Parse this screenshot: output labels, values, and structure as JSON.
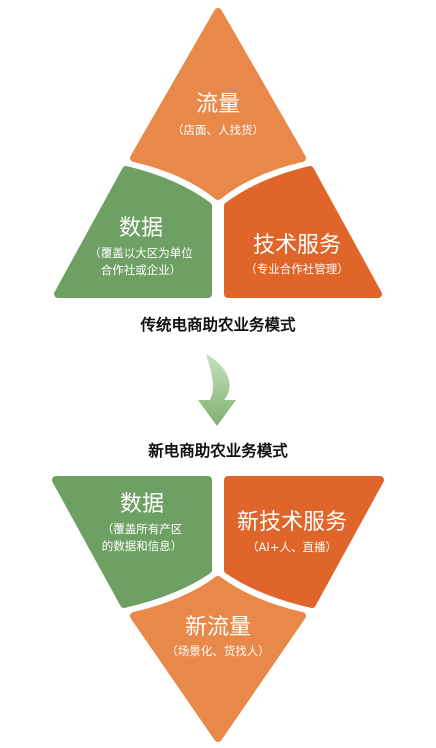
{
  "traditional": {
    "traffic": {
      "title": "流量",
      "subtitle": "（店面、人找货）"
    },
    "data": {
      "title": "数据",
      "subtitle_line1": "（覆盖以大区为单位",
      "subtitle_line2": "合作社或企业）"
    },
    "tech": {
      "title": "技术服务",
      "subtitle": "（专业合作社管理）"
    },
    "caption": "传统电商助农业务模式"
  },
  "new_model": {
    "caption": "新电商助农业务模式",
    "data": {
      "title": "数据",
      "subtitle_line1": "（覆盖所有产区",
      "subtitle_line2": "的数据和信息）"
    },
    "tech": {
      "title": "新技术服务",
      "subtitle": "（AI+人、直播）"
    },
    "traffic": {
      "title": "新流量",
      "subtitle": "（场景化、货找人）"
    }
  },
  "colors": {
    "orange_light": "#E8894A",
    "orange_dark": "#E0652A",
    "green": "#6FA063",
    "arrow_green": "#97C28A"
  },
  "icons": {
    "transition": "curved-down-arrow-icon"
  }
}
